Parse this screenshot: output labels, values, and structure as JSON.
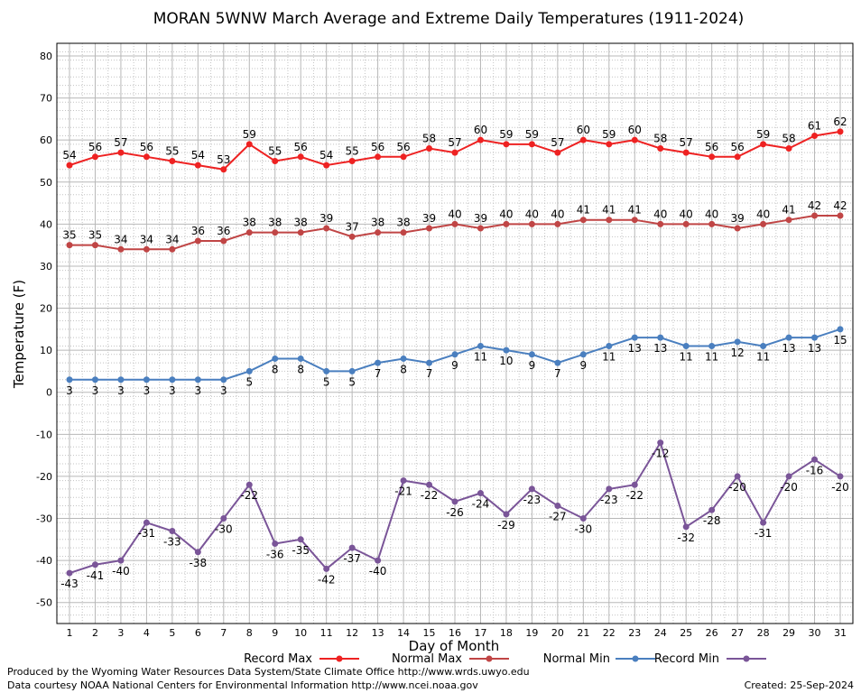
{
  "chart_data": {
    "type": "line",
    "title": "MORAN 5WNW March Average and Extreme Daily Temperatures (1911-2024)",
    "xlabel": "Day of Month",
    "ylabel": "Temperature (F)",
    "ylim": [
      -55,
      83
    ],
    "yticks": [
      80,
      70,
      60,
      50,
      40,
      30,
      20,
      10,
      0,
      -10,
      -20,
      -30,
      -40,
      -50
    ],
    "x": [
      1,
      2,
      3,
      4,
      5,
      6,
      7,
      8,
      9,
      10,
      11,
      12,
      13,
      14,
      15,
      16,
      17,
      18,
      19,
      20,
      21,
      22,
      23,
      24,
      25,
      26,
      27,
      28,
      29,
      30,
      31
    ],
    "grid": true,
    "legend_position": "bottom",
    "series": [
      {
        "name": "Record Max",
        "color": "#ee2222",
        "label_position": "above",
        "values": [
          54,
          56,
          57,
          56,
          55,
          54,
          53,
          59,
          55,
          56,
          54,
          55,
          56,
          56,
          58,
          57,
          60,
          59,
          59,
          57,
          60,
          59,
          60,
          58,
          57,
          56,
          56,
          59,
          58,
          61,
          62
        ]
      },
      {
        "name": "Normal Max",
        "color": "#c04545",
        "label_position": "above",
        "values": [
          35,
          35,
          34,
          34,
          34,
          36,
          36,
          38,
          38,
          38,
          39,
          37,
          38,
          38,
          39,
          40,
          39,
          40,
          40,
          40,
          41,
          41,
          41,
          40,
          40,
          40,
          39,
          40,
          41,
          42,
          42
        ]
      },
      {
        "name": "Normal Min",
        "color": "#4a7fbf",
        "label_position": "below",
        "values": [
          3,
          3,
          3,
          3,
          3,
          3,
          3,
          5,
          8,
          8,
          5,
          5,
          7,
          8,
          7,
          9,
          11,
          10,
          9,
          7,
          9,
          11,
          13,
          13,
          11,
          11,
          12,
          11,
          13,
          13,
          15
        ]
      },
      {
        "name": "Record Min",
        "color": "#7a5598",
        "label_position": "below",
        "values": [
          -43,
          -41,
          -40,
          -31,
          -33,
          -38,
          -30,
          -22,
          -36,
          -35,
          -42,
          -37,
          -40,
          -21,
          -22,
          -26,
          -24,
          -29,
          -23,
          -27,
          -30,
          -23,
          -22,
          -12,
          -32,
          -28,
          -20,
          -31,
          -20,
          -16,
          -20
        ]
      }
    ]
  },
  "footer": {
    "producer": "Produced by the Wyoming Water Resources Data System/State Climate Office http://www.wrds.uwyo.edu",
    "courtesy": "Data courtesy NOAA National Centers for Environmental Information http://www.ncei.noaa.gov",
    "created": "Created:  25-Sep-2024"
  }
}
